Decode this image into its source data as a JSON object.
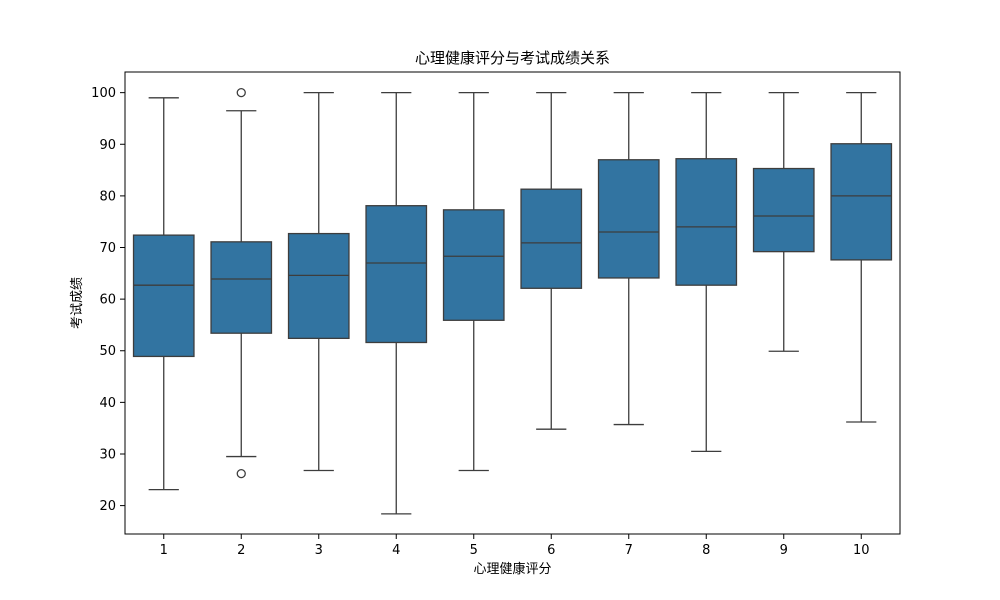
{
  "chart_data": {
    "type": "box",
    "title": "心理健康评分与考试成绩关系",
    "xlabel": "心理健康评分",
    "ylabel": "考试成绩",
    "categories": [
      "1",
      "2",
      "3",
      "4",
      "5",
      "6",
      "7",
      "8",
      "9",
      "10"
    ],
    "ylim": [
      14.5,
      104
    ],
    "yticks": [
      20,
      30,
      40,
      50,
      60,
      70,
      80,
      90,
      100
    ],
    "grid": false,
    "box_color": "#3274a1",
    "edge_color": "#3d3d3d",
    "boxes": [
      {
        "category": "1",
        "whisker_low": 23.1,
        "q1": 48.9,
        "median": 62.7,
        "q3": 72.4,
        "whisker_high": 99.0,
        "outliers": []
      },
      {
        "category": "2",
        "whisker_low": 29.5,
        "q1": 53.4,
        "median": 63.9,
        "q3": 71.1,
        "whisker_high": 96.5,
        "outliers": [
          100.0,
          26.2
        ]
      },
      {
        "category": "3",
        "whisker_low": 26.8,
        "q1": 52.4,
        "median": 64.6,
        "q3": 72.7,
        "whisker_high": 100.0,
        "outliers": []
      },
      {
        "category": "4",
        "whisker_low": 18.4,
        "q1": 51.6,
        "median": 67.0,
        "q3": 78.1,
        "whisker_high": 100.0,
        "outliers": []
      },
      {
        "category": "5",
        "whisker_low": 26.8,
        "q1": 55.9,
        "median": 68.3,
        "q3": 77.3,
        "whisker_high": 100.0,
        "outliers": []
      },
      {
        "category": "6",
        "whisker_low": 34.8,
        "q1": 62.1,
        "median": 70.9,
        "q3": 81.3,
        "whisker_high": 100.0,
        "outliers": []
      },
      {
        "category": "7",
        "whisker_low": 35.7,
        "q1": 64.1,
        "median": 73.0,
        "q3": 87.0,
        "whisker_high": 100.0,
        "outliers": []
      },
      {
        "category": "8",
        "whisker_low": 30.5,
        "q1": 62.7,
        "median": 74.0,
        "q3": 87.2,
        "whisker_high": 100.0,
        "outliers": []
      },
      {
        "category": "9",
        "whisker_low": 49.9,
        "q1": 69.2,
        "median": 76.1,
        "q3": 85.3,
        "whisker_high": 100.0,
        "outliers": []
      },
      {
        "category": "10",
        "whisker_low": 36.2,
        "q1": 67.6,
        "median": 80.0,
        "q3": 90.1,
        "whisker_high": 100.0,
        "outliers": []
      }
    ]
  }
}
